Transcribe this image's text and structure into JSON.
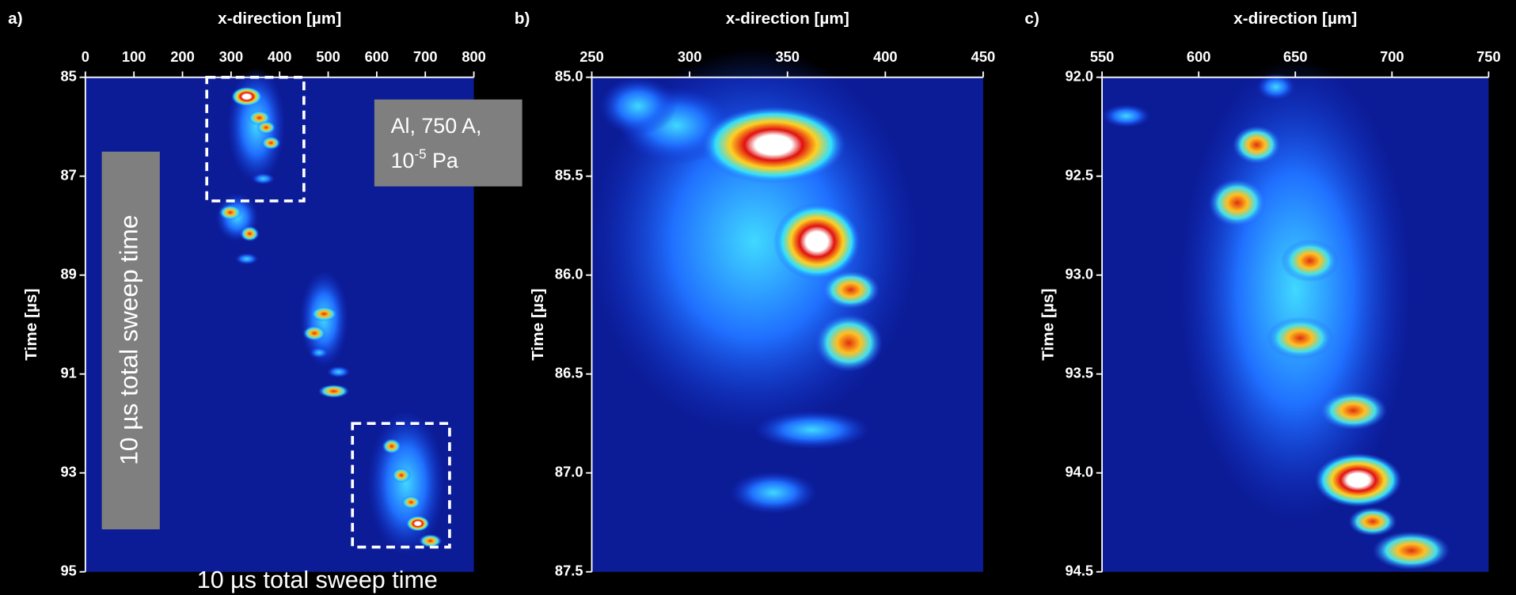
{
  "chart_data": [
    {
      "type": "heatmap",
      "panel_label": "a)",
      "x_label": "x-direction [µm]",
      "y_label": "Time [µs]",
      "xlim": [
        0,
        800
      ],
      "xticks": [
        0,
        100,
        200,
        300,
        400,
        500,
        600,
        700,
        800
      ],
      "ylim": [
        85,
        95
      ],
      "yticks": [
        85,
        87,
        89,
        91,
        93,
        95
      ]
    },
    {
      "type": "heatmap",
      "panel_label": "b)",
      "x_label": "x-direction [µm]",
      "y_label": "Time [µs]",
      "xlim": [
        250,
        450
      ],
      "xticks": [
        250,
        300,
        350,
        400,
        450
      ],
      "ylim": [
        85,
        87.5
      ],
      "yticks": [
        {
          "value": 85,
          "label": "85.0"
        },
        85.5,
        {
          "value": 86,
          "label": "86.0"
        },
        86.5,
        {
          "value": 87,
          "label": "87.0"
        },
        87.5
      ]
    },
    {
      "type": "heatmap",
      "panel_label": "c)",
      "x_label": "x-direction [µm]",
      "y_label": "Time [µs]",
      "xlim": [
        550,
        750
      ],
      "xticks": [
        550,
        600,
        650,
        700,
        750
      ],
      "ylim": [
        92,
        94.5
      ],
      "yticks": [
        {
          "value": 92,
          "label": "92.0"
        },
        92.5,
        {
          "value": 93,
          "label": "93.0"
        },
        93.5,
        {
          "value": 94,
          "label": "94.0"
        },
        94.5
      ]
    }
  ],
  "annotations": {
    "conditions_line1": "Al, 750 A,",
    "pressure_base": "10",
    "pressure_exp": "-5",
    "pressure_unit": "Pa",
    "sweep_vertical": "10 µs total sweep time",
    "sweep_bottom": "10 µs total sweep time"
  }
}
